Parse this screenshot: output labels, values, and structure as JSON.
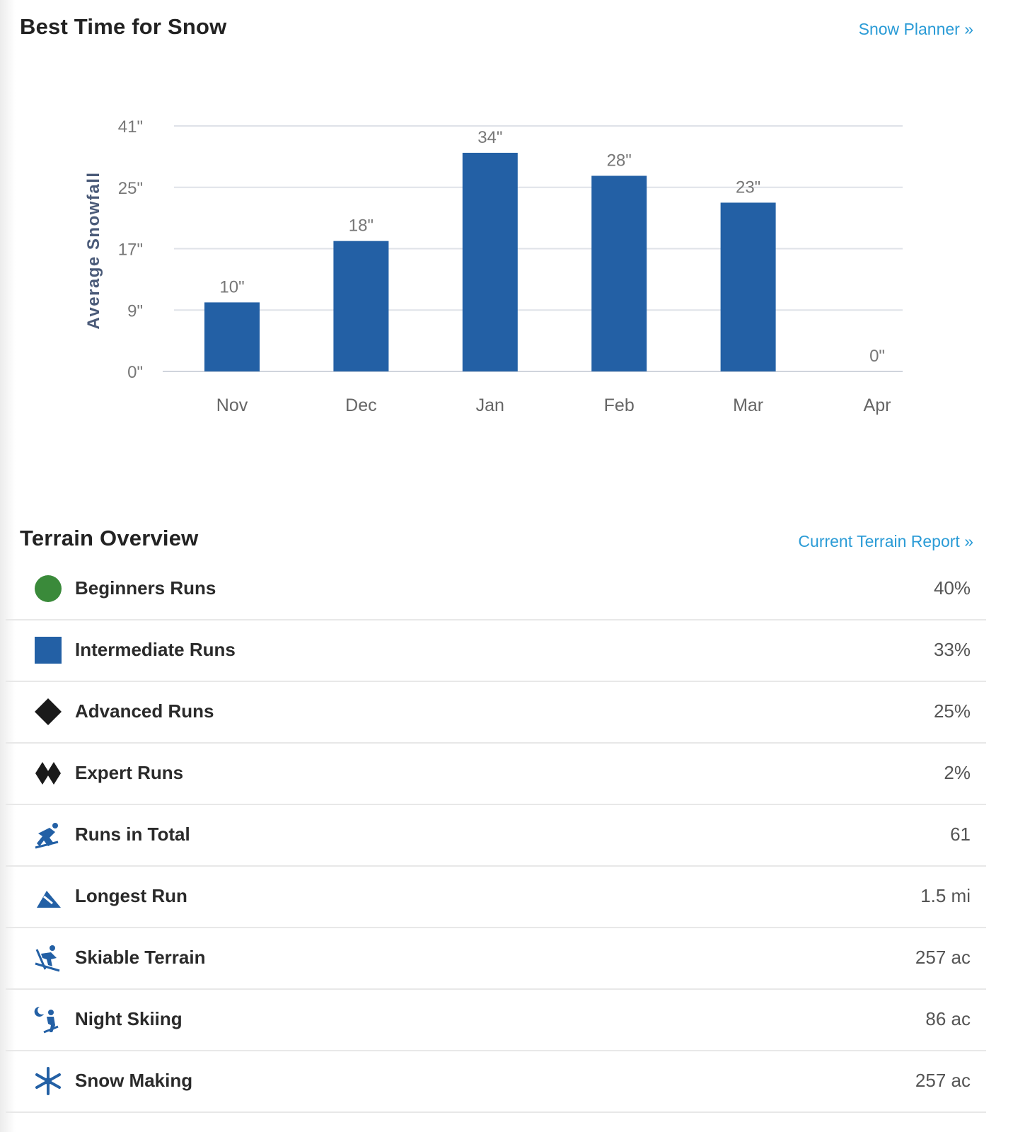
{
  "snow": {
    "title": "Best Time for Snow",
    "link": "Snow Planner »"
  },
  "chart_data": {
    "type": "bar",
    "ylabel": "Average Snowfall",
    "categories": [
      "Nov",
      "Dec",
      "Jan",
      "Feb",
      "Mar",
      "Apr"
    ],
    "values": [
      10,
      18,
      34,
      28,
      23,
      0
    ],
    "data_labels": [
      "10\"",
      "18\"",
      "34\"",
      "28\"",
      "23\"",
      "0\""
    ],
    "y_ticks": [
      0,
      9,
      17,
      25,
      41
    ],
    "y_tick_labels": [
      "0\"",
      "9\"",
      "17\"",
      "25\"",
      "41\""
    ],
    "bar_color": "#2360a5",
    "grid": true
  },
  "terrain": {
    "title": "Terrain Overview",
    "link": "Current Terrain Report »",
    "rows": [
      {
        "icon": "green-circle-icon",
        "label": "Beginners Runs",
        "value": "40%"
      },
      {
        "icon": "blue-square-icon",
        "label": "Intermediate Runs",
        "value": "33%"
      },
      {
        "icon": "black-diamond-icon",
        "label": "Advanced Runs",
        "value": "25%"
      },
      {
        "icon": "double-black-diamond-icon",
        "label": "Expert Runs",
        "value": "2%"
      },
      {
        "icon": "skier-icon",
        "label": "Runs in Total",
        "value": "61"
      },
      {
        "icon": "mountain-slope-icon",
        "label": "Longest Run",
        "value": "1.5 mi"
      },
      {
        "icon": "freestyle-skier-icon",
        "label": "Skiable Terrain",
        "value": "257 ac"
      },
      {
        "icon": "night-skier-icon",
        "label": "Night Skiing",
        "value": "86 ac"
      },
      {
        "icon": "snowflake-icon",
        "label": "Snow Making",
        "value": "257 ac"
      }
    ]
  },
  "colors": {
    "accent_link": "#2a9bd6",
    "green": "#3a8a3a",
    "blue": "#2360a5",
    "black": "#1a1a1a"
  }
}
